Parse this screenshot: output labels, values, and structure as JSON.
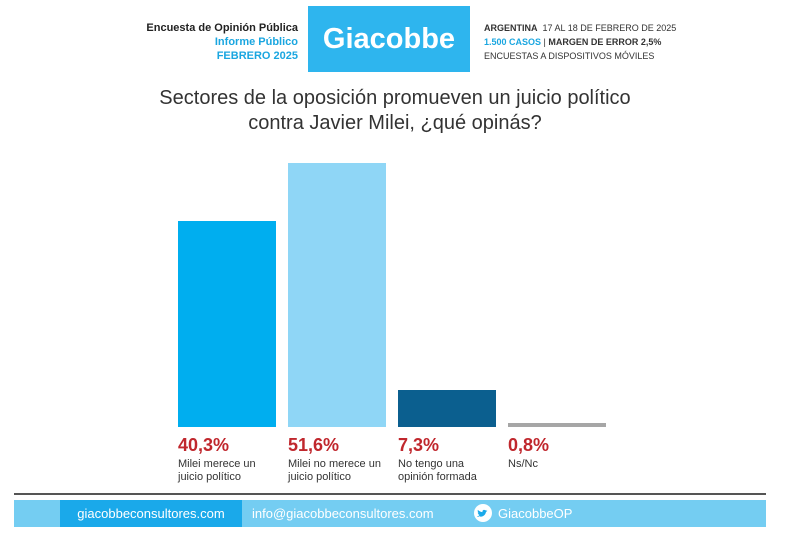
{
  "header": {
    "survey": "Encuesta de Opinión Pública",
    "report": "Informe Público",
    "period": "FEBRERO 2025",
    "brand": "Giacobbe",
    "country": "ARGENTINA",
    "dates": "17 AL 18 DE FEBRERO DE 2025",
    "cases": "1.500 CASOS",
    "separator": "|",
    "margin": "MARGEN DE ERROR 2,5%",
    "method": "ENCUESTAS A DISPOSITIVOS MÓVILES"
  },
  "chart_data": {
    "type": "bar",
    "title": "Sectores de la oposición promueven un juicio político contra Javier Milei, ¿qué opinás?",
    "categories": [
      "Milei merece un juicio político",
      "Milei no merece un juicio político",
      "No tengo una opinión formada",
      "Ns/Nc"
    ],
    "values": [
      40.3,
      51.6,
      7.3,
      0.8
    ],
    "value_labels": [
      "40,3%",
      "51,6%",
      "7,3%",
      "0,8%"
    ],
    "colors": [
      "#00aeef",
      "#8fd6f6",
      "#0b5f8f",
      "#a6a6a6"
    ],
    "value_label_color": "#c0272d"
  },
  "footer": {
    "website": "giacobbeconsultores.com",
    "email": "info@giacobbeconsultores.com",
    "twitter": "GiacobbeOP"
  }
}
